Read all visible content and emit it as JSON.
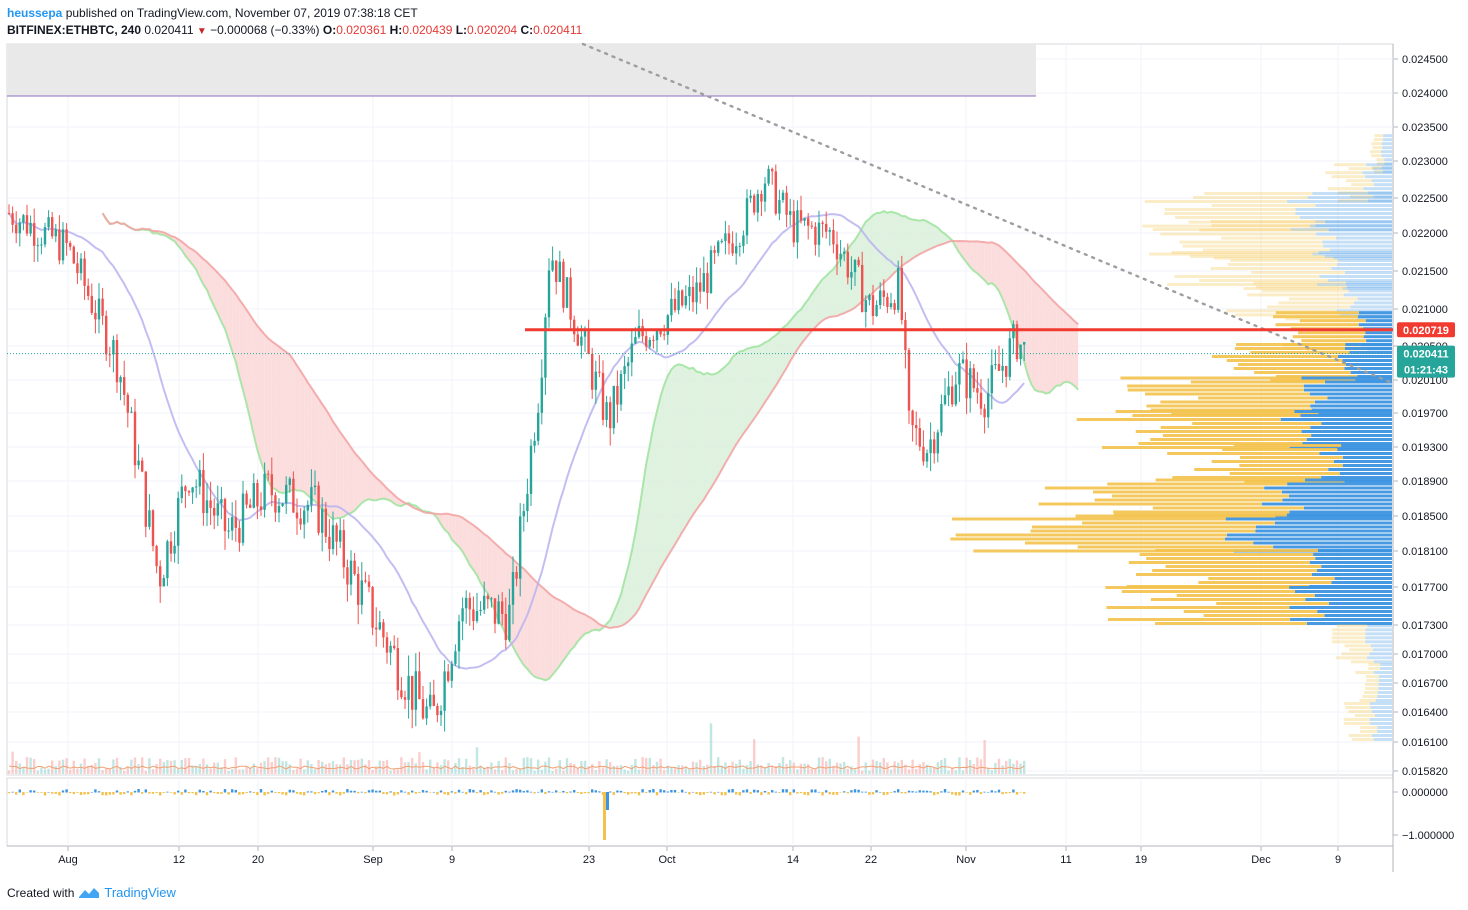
{
  "header": {
    "author": "heussepa",
    "published": "published on TradingView.com, November 07, 2019 07:38:18 CET",
    "symbol": "BITFINEX:ETHBTC, 240",
    "last": "0.020411",
    "change": "−0.000068 (−0.33%)",
    "o_label": "O:",
    "o_value": "0.020361",
    "h_label": "H:",
    "h_value": "0.020439",
    "l_label": "L:",
    "l_value": "0.020204",
    "c_label": "C:",
    "c_value": "0.020411"
  },
  "footer": {
    "created_with": "Created with",
    "brand": "TradingView",
    "logo_icon": "tradingview-logo-icon"
  },
  "colors": {
    "up": "#26a69a",
    "down": "#ef5350",
    "resistance": "#f23b30",
    "cloud_bear": "#fcd9d9",
    "cloud_bull": "#dcefdc",
    "tenkan": "#b9b3f0",
    "vp_up": "#f4c24c",
    "vp_down": "#3d95e0",
    "price_tag": "#26a69a",
    "line_tag": "#f23b30"
  },
  "chart_data": {
    "type": "candlestick",
    "symbol": "BITFINEX:ETHBTC",
    "interval": "240",
    "ylim": [
      0.0158,
      0.0247
    ],
    "y_ticks": [
      "0.024500",
      "0.024000",
      "0.023500",
      "0.023000",
      "0.022500",
      "0.022000",
      "0.021500",
      "0.021000",
      "0.020500",
      "0.020100",
      "0.019700",
      "0.019300",
      "0.018900",
      "0.018500",
      "0.018100",
      "0.017700",
      "0.017300",
      "0.017000",
      "0.016700",
      "0.016400",
      "0.016100",
      "0.015820"
    ],
    "x_ticks": [
      "Aug",
      "12",
      "20",
      "Sep",
      "9",
      "23",
      "Oct",
      "14",
      "22",
      "Nov",
      "11",
      "19",
      "Dec",
      "9"
    ],
    "price_labels": {
      "resistance": "0.020719",
      "last_price": "0.020411",
      "countdown": "01:21:43"
    },
    "resistance_level": 0.020719,
    "last_price": 0.020411,
    "indicator_ticks": [
      "0.000000",
      "−1.000000"
    ],
    "approx_close_path": [
      {
        "date": "Jul 26",
        "close": 0.0223
      },
      {
        "date": "Aug 1",
        "close": 0.0218
      },
      {
        "date": "Aug 6",
        "close": 0.0203
      },
      {
        "date": "Aug 10",
        "close": 0.0178
      },
      {
        "date": "Aug 13",
        "close": 0.019
      },
      {
        "date": "Aug 17",
        "close": 0.0183
      },
      {
        "date": "Aug 21",
        "close": 0.0188
      },
      {
        "date": "Aug 26",
        "close": 0.0186
      },
      {
        "date": "Aug 31",
        "close": 0.0176
      },
      {
        "date": "Sep 5",
        "close": 0.0166
      },
      {
        "date": "Sep 7",
        "close": 0.0163
      },
      {
        "date": "Sep 10",
        "close": 0.0175
      },
      {
        "date": "Sep 15",
        "close": 0.0174
      },
      {
        "date": "Sep 18",
        "close": 0.0201
      },
      {
        "date": "Sep 19",
        "close": 0.0218
      },
      {
        "date": "Sep 23",
        "close": 0.0203
      },
      {
        "date": "Sep 25",
        "close": 0.0196
      },
      {
        "date": "Sep 28",
        "close": 0.0206
      },
      {
        "date": "Oct 4",
        "close": 0.0212
      },
      {
        "date": "Oct 9",
        "close": 0.0222
      },
      {
        "date": "Oct 11",
        "close": 0.0228
      },
      {
        "date": "Oct 14",
        "close": 0.0221
      },
      {
        "date": "Oct 18",
        "close": 0.022
      },
      {
        "date": "Oct 22",
        "close": 0.021
      },
      {
        "date": "Oct 25",
        "close": 0.0213
      },
      {
        "date": "Oct 26",
        "close": 0.0195
      },
      {
        "date": "Oct 28",
        "close": 0.0193
      },
      {
        "date": "Oct 31",
        "close": 0.0202
      },
      {
        "date": "Nov 3",
        "close": 0.0199
      },
      {
        "date": "Nov 6",
        "close": 0.0206
      },
      {
        "date": "Nov 7",
        "close": 0.020411
      }
    ],
    "volume_profile": [
      {
        "price": 0.0231,
        "up": 0.03,
        "down": 0.03
      },
      {
        "price": 0.0227,
        "up": 0.1,
        "down": 0.08
      },
      {
        "price": 0.0223,
        "up": 0.38,
        "down": 0.28
      },
      {
        "price": 0.0219,
        "up": 0.45,
        "down": 0.22
      },
      {
        "price": 0.0215,
        "up": 0.4,
        "down": 0.2
      },
      {
        "price": 0.0211,
        "up": 0.3,
        "down": 0.15
      },
      {
        "price": 0.0207,
        "up": 0.25,
        "down": 0.1
      },
      {
        "price": 0.0203,
        "up": 0.35,
        "down": 0.15
      },
      {
        "price": 0.0199,
        "up": 0.5,
        "down": 0.25
      },
      {
        "price": 0.0195,
        "up": 0.55,
        "down": 0.3
      },
      {
        "price": 0.0191,
        "up": 0.42,
        "down": 0.2
      },
      {
        "price": 0.0187,
        "up": 0.6,
        "down": 0.35
      },
      {
        "price": 0.0183,
        "up": 0.74,
        "down": 0.45
      },
      {
        "price": 0.0179,
        "up": 0.55,
        "down": 0.25
      },
      {
        "price": 0.0175,
        "up": 0.5,
        "down": 0.28
      },
      {
        "price": 0.0171,
        "up": 0.1,
        "down": 0.08
      },
      {
        "price": 0.0167,
        "up": 0.05,
        "down": 0.05
      },
      {
        "price": 0.0163,
        "up": 0.07,
        "down": 0.06
      }
    ]
  }
}
